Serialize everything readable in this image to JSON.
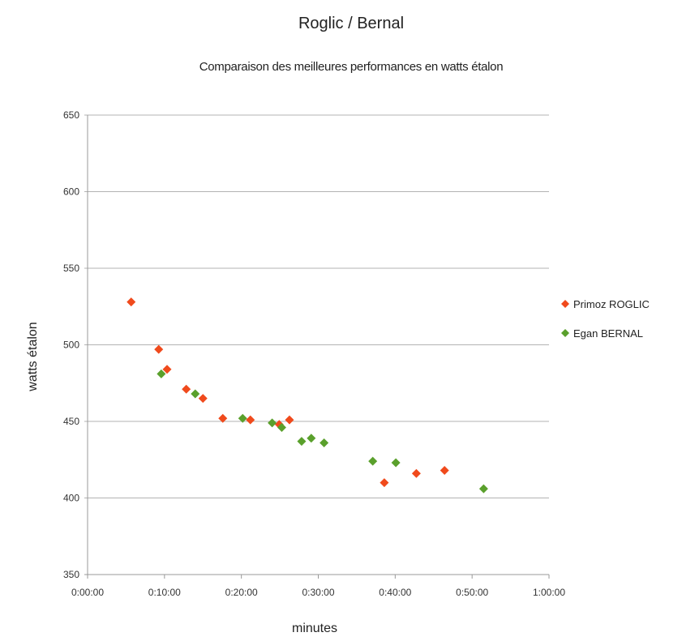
{
  "colors": {
    "roglic": "#f04a1c",
    "bernal": "#5aa02c",
    "grid": "#b3b3b3",
    "axis": "#999999"
  },
  "chart_data": {
    "type": "scatter",
    "title": "Roglic / Bernal",
    "subtitle": "Comparaison des meilleures performances en watts étalon",
    "xlabel": "minutes",
    "ylabel": "watts étalon",
    "xlim": [
      "0:00:00",
      "1:00:00"
    ],
    "ylim": [
      350,
      650
    ],
    "x_ticks": [
      "0:00:00",
      "0:10:00",
      "0:20:00",
      "0:30:00",
      "0:40:00",
      "0:50:00",
      "1:00:00"
    ],
    "y_ticks": [
      350,
      400,
      450,
      500,
      550,
      600,
      650
    ],
    "grid": "horizontal",
    "legend_position": "right",
    "series": [
      {
        "name": "Primoz ROGLIC",
        "marker": "diamond",
        "points": [
          {
            "x": "0:05:40",
            "y": 528
          },
          {
            "x": "0:09:15",
            "y": 497
          },
          {
            "x": "0:10:20",
            "y": 484
          },
          {
            "x": "0:12:50",
            "y": 471
          },
          {
            "x": "0:15:00",
            "y": 465
          },
          {
            "x": "0:17:35",
            "y": 452
          },
          {
            "x": "0:21:10",
            "y": 451
          },
          {
            "x": "0:24:55",
            "y": 448
          },
          {
            "x": "0:26:15",
            "y": 451
          },
          {
            "x": "0:38:35",
            "y": 410
          },
          {
            "x": "0:42:45",
            "y": 416
          },
          {
            "x": "0:46:25",
            "y": 418
          }
        ]
      },
      {
        "name": "Egan BERNAL",
        "marker": "diamond",
        "points": [
          {
            "x": "0:09:35",
            "y": 481
          },
          {
            "x": "0:14:00",
            "y": 468
          },
          {
            "x": "0:20:10",
            "y": 452
          },
          {
            "x": "0:24:00",
            "y": 449
          },
          {
            "x": "0:25:15",
            "y": 446
          },
          {
            "x": "0:27:50",
            "y": 437
          },
          {
            "x": "0:29:05",
            "y": 439
          },
          {
            "x": "0:30:45",
            "y": 436
          },
          {
            "x": "0:37:05",
            "y": 424
          },
          {
            "x": "0:40:05",
            "y": 423
          },
          {
            "x": "0:51:30",
            "y": 406
          }
        ]
      }
    ]
  }
}
